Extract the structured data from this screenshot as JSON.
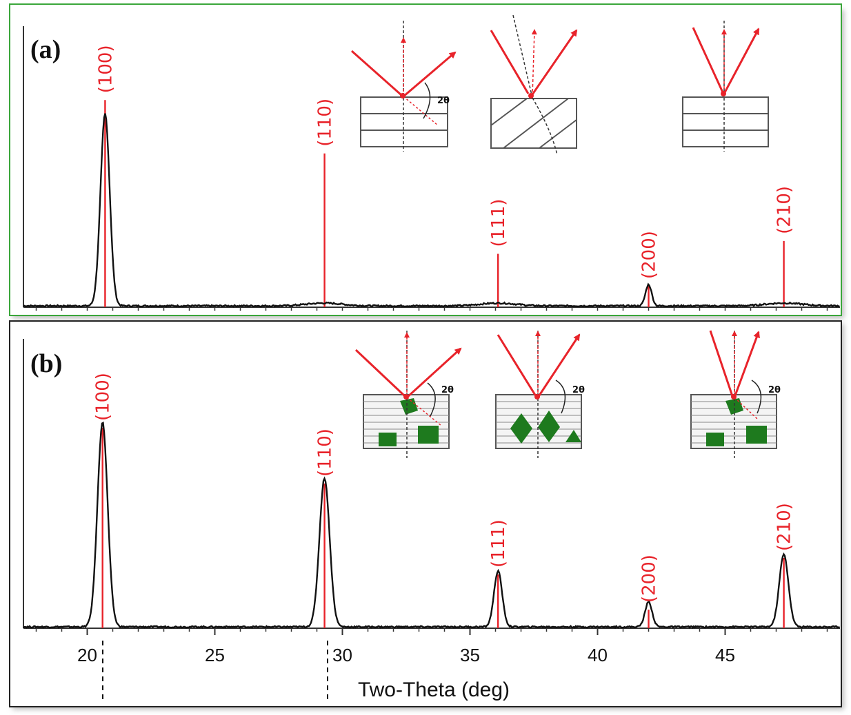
{
  "chart_data": [
    {
      "type": "line",
      "panel_label": "(a)",
      "xlim": [
        17.5,
        49.5
      ],
      "peaks": [
        {
          "label": "(100)",
          "x": 20.7,
          "marker_height": 0.97,
          "profile_height": 0.9,
          "width": 0.18
        },
        {
          "label": "(110)",
          "x": 29.3,
          "marker_height": 0.72,
          "profile_height": 0.0,
          "width": 0.18
        },
        {
          "label": "(111)",
          "x": 36.1,
          "marker_height": 0.25,
          "profile_height": 0.0,
          "width": 0.15
        },
        {
          "label": "(200)",
          "x": 42.0,
          "marker_height": 0.1,
          "profile_height": 0.1,
          "width": 0.12
        },
        {
          "label": "(210)",
          "x": 47.3,
          "marker_height": 0.31,
          "profile_height": 0.0,
          "width": 0.15
        }
      ],
      "border_color": "#3aa63a"
    },
    {
      "type": "line",
      "panel_label": "(b)",
      "xlim": [
        17.5,
        49.5
      ],
      "peaks": [
        {
          "label": "(100)",
          "x": 20.6,
          "marker_height": 0.97,
          "profile_height": 0.99,
          "width": 0.2
        },
        {
          "label": "(110)",
          "x": 29.3,
          "marker_height": 0.7,
          "profile_height": 0.72,
          "width": 0.2
        },
        {
          "label": "(111)",
          "x": 36.1,
          "marker_height": 0.26,
          "profile_height": 0.27,
          "width": 0.16
        },
        {
          "label": "(200)",
          "x": 42.0,
          "marker_height": 0.09,
          "profile_height": 0.12,
          "width": 0.14
        },
        {
          "label": "(210)",
          "x": 47.3,
          "marker_height": 0.34,
          "profile_height": 0.35,
          "width": 0.18
        }
      ],
      "x_ticks": [
        20,
        25,
        30,
        35,
        40,
        45
      ],
      "xlabel": "Two-Theta (deg)",
      "border_color": "#222222"
    }
  ],
  "insets": {
    "angle_label": "2θ"
  },
  "colors": {
    "peak": "#e8232a",
    "profile": "#111111",
    "grain": "#1e7a1e"
  }
}
